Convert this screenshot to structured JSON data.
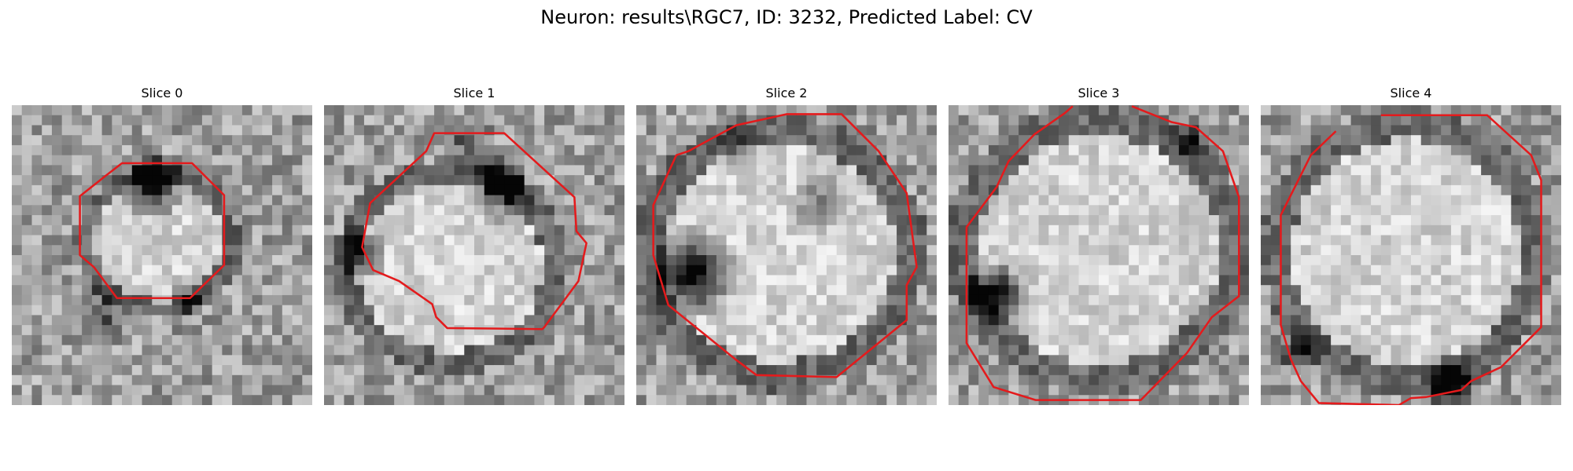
{
  "figure": {
    "title": "Neuron: results\\RGC7, ID: 3232, Predicted Label: CV",
    "contour_color": "#e41a1c",
    "colormap": "gray",
    "image_type": "grayscale microscopy slices with red contour overlay"
  },
  "panels": [
    {
      "title": "Slice 0"
    },
    {
      "title": "Slice 1"
    },
    {
      "title": "Slice 2"
    },
    {
      "title": "Slice 3"
    },
    {
      "title": "Slice 4"
    }
  ]
}
